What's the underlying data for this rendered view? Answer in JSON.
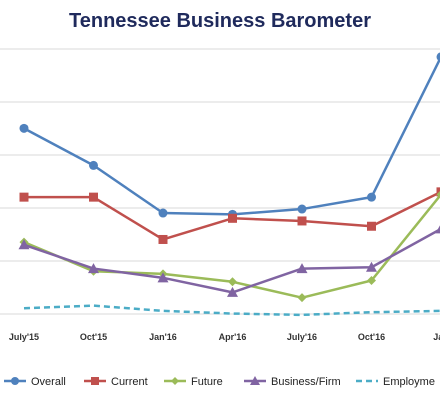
{
  "chart_data": {
    "type": "line",
    "title": "Tennessee Business Barometer",
    "xlabel": "",
    "ylabel": "",
    "categories": [
      "July'15",
      "Oct'15",
      "Jan'16",
      "Apr'16",
      "July'16",
      "Oct'16",
      "Jan"
    ],
    "y_tick_labels": [],
    "grid": true,
    "legend_position": "bottom",
    "series": [
      {
        "name": "Overall",
        "color": "#4f81bd",
        "marker": "circle",
        "dashed": false,
        "values": [
          80,
          66,
          48,
          47.5,
          49.5,
          54,
          107
        ]
      },
      {
        "name": "Current",
        "color": "#c0504d",
        "marker": "square",
        "dashed": false,
        "values": [
          54,
          54,
          38,
          46,
          45,
          43,
          56
        ]
      },
      {
        "name": "Future",
        "color": "#9bbb59",
        "marker": "diamond",
        "dashed": false,
        "values": [
          37,
          26,
          25,
          22,
          16,
          22.5,
          55
        ]
      },
      {
        "name": "Business/Firm",
        "color": "#8064a2",
        "marker": "triangle",
        "dashed": false,
        "values": [
          36,
          27,
          23.5,
          18,
          27,
          27.5,
          42
        ]
      },
      {
        "name": "Employme",
        "color": "#4bacc6",
        "marker": "none",
        "dashed": true,
        "values": [
          12,
          13,
          11,
          10,
          9.5,
          10.5,
          11
        ]
      }
    ]
  }
}
